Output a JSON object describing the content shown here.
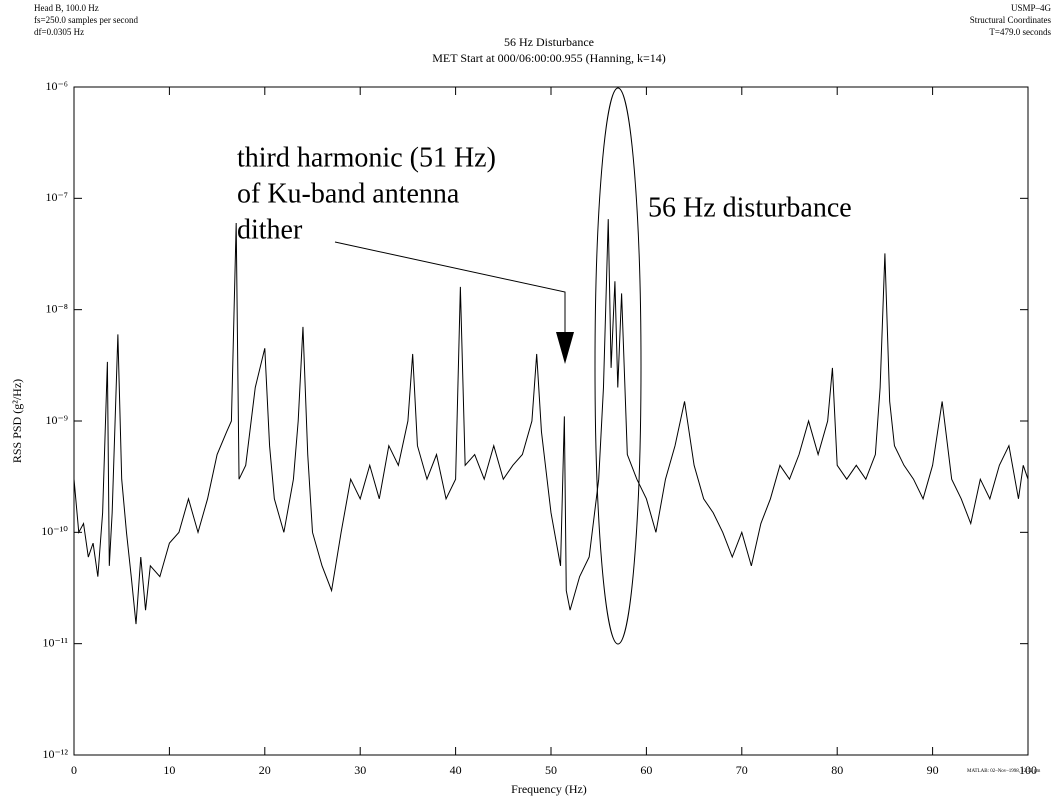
{
  "chart_data": {
    "type": "line",
    "header_left": [
      "Head B, 100.0 Hz",
      "fs=250.0 samples per second",
      "df=0.0305 Hz"
    ],
    "header_right": [
      "USMP–4G",
      "Structural Coordinates",
      "T=479.0 seconds"
    ],
    "title": "56 Hz Disturbance",
    "subtitle": "MET Start at 000/06:00:00.955 (Hanning, k=14)",
    "x_label": "Frequency (Hz)",
    "y_label": "RSS PSD (g²/Hz)",
    "annotations": [
      "third harmonic (51 Hz)",
      "of Ku-band antenna",
      "dither",
      "56 Hz disturbance"
    ],
    "footnote": "MATLAB: 02–Nov–1998, 12:52 pm",
    "log_y": true,
    "color": "#000000",
    "xlim": [
      0,
      100
    ],
    "xticks": [
      0,
      10,
      20,
      30,
      40,
      50,
      60,
      70,
      80,
      90,
      100
    ],
    "ylim": [
      1e-12,
      1e-06
    ],
    "yticks": [
      {
        "value": 1e-12,
        "label": "10⁻¹²"
      },
      {
        "value": 1e-11,
        "label": "10⁻¹¹"
      },
      {
        "value": 1e-10,
        "label": "10⁻¹⁰"
      },
      {
        "value": 1e-09,
        "label": "10⁻⁹"
      },
      {
        "value": 1e-08,
        "label": "10⁻⁸"
      },
      {
        "value": 1e-07,
        "label": "10⁻⁷"
      },
      {
        "value": 1e-06,
        "label": "10⁻⁶"
      }
    ],
    "x": [
      0,
      0.5,
      1,
      1.5,
      2,
      2.5,
      3,
      3.5,
      3.7,
      4,
      4.6,
      5,
      5.5,
      6,
      6.5,
      7,
      7.5,
      8,
      9,
      10,
      11,
      12,
      13,
      14,
      15,
      16,
      16.5,
      17,
      17.3,
      18,
      19,
      20,
      20.5,
      21,
      22,
      23,
      23.5,
      24,
      24.5,
      25,
      26,
      27,
      28,
      29,
      30,
      31,
      32,
      33,
      34,
      35,
      35.5,
      36,
      37,
      38,
      39,
      40,
      40.5,
      41,
      42,
      43,
      44,
      45,
      46,
      47,
      48,
      48.5,
      49,
      50,
      51,
      51.4,
      51.6,
      52,
      53,
      54,
      55,
      55.5,
      56,
      56.3,
      56.7,
      57,
      57.4,
      58,
      59,
      60,
      61,
      62,
      63,
      64,
      65,
      66,
      67,
      68,
      69,
      70,
      71,
      72,
      73,
      74,
      75,
      76,
      77,
      78,
      79,
      79.5,
      80,
      81,
      82,
      83,
      84,
      84.5,
      85,
      85.5,
      86,
      87,
      88,
      89,
      90,
      91,
      92,
      93,
      94,
      95,
      96,
      97,
      98,
      99,
      99.5,
      100
    ],
    "values": [
      3e-10,
      1e-10,
      1.2e-10,
      6e-11,
      8e-11,
      4e-11,
      1.5e-10,
      3.4e-09,
      5e-11,
      1.5e-10,
      6e-09,
      3e-10,
      1e-10,
      4e-11,
      1.5e-11,
      6e-11,
      2e-11,
      5e-11,
      4e-11,
      8e-11,
      1e-10,
      2e-10,
      1e-10,
      2e-10,
      5e-10,
      8e-10,
      1e-09,
      6e-08,
      3e-10,
      4e-10,
      2e-09,
      4.5e-09,
      6e-10,
      2e-10,
      1e-10,
      3e-10,
      1e-09,
      7e-09,
      5e-10,
      1e-10,
      5e-11,
      3e-11,
      1e-10,
      3e-10,
      2e-10,
      4e-10,
      2e-10,
      6e-10,
      4e-10,
      1e-09,
      4e-09,
      6e-10,
      3e-10,
      5e-10,
      2e-10,
      3e-10,
      1.6e-08,
      4e-10,
      5e-10,
      3e-10,
      6e-10,
      3e-10,
      4e-10,
      5e-10,
      1e-09,
      4e-09,
      8e-10,
      1.5e-10,
      5e-11,
      1.1e-09,
      3e-11,
      2e-11,
      4e-11,
      6e-11,
      3e-10,
      2e-09,
      6.5e-08,
      3e-09,
      1.8e-08,
      2e-09,
      1.4e-08,
      5e-10,
      3e-10,
      2e-10,
      1e-10,
      3e-10,
      6e-10,
      1.5e-09,
      4e-10,
      2e-10,
      1.5e-10,
      1e-10,
      6e-11,
      1e-10,
      5e-11,
      1.2e-10,
      2e-10,
      4e-10,
      3e-10,
      5e-10,
      1e-09,
      5e-10,
      1e-09,
      3e-09,
      4e-10,
      3e-10,
      4e-10,
      3e-10,
      5e-10,
      2e-09,
      3.2e-08,
      1.5e-09,
      6e-10,
      4e-10,
      3e-10,
      2e-10,
      4e-10,
      1.5e-09,
      3e-10,
      2e-10,
      1.2e-10,
      3e-10,
      2e-10,
      4e-10,
      6e-10,
      2e-10,
      4e-10,
      3e-10
    ]
  }
}
